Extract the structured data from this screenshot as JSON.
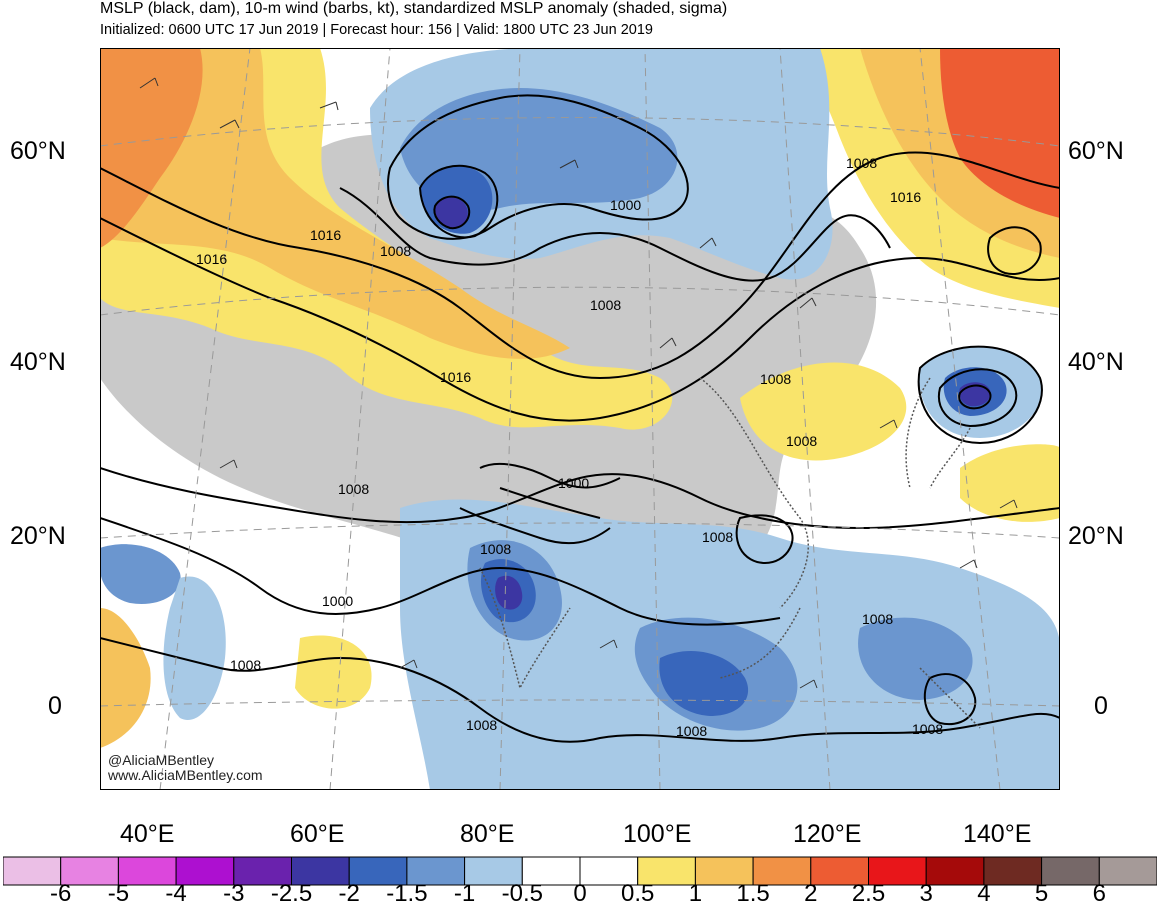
{
  "header": {
    "title": "MSLP (black, dam), 10-m wind (barbs, kt), standardized MSLP anomaly (shaded, sigma)",
    "subtitle": "Initialized: 0600 UTC 17 Jun 2019 | Forecast hour: 156 | Valid: 1800 UTC 23 Jun 2019"
  },
  "map": {
    "lat_labels": [
      "60°N",
      "40°N",
      "20°N",
      "0"
    ],
    "lon_labels": [
      "40°E",
      "60°E",
      "80°E",
      "100°E",
      "120°E",
      "140°E"
    ],
    "contour_labels": [
      "1016",
      "1016",
      "1008",
      "1000",
      "1008",
      "1008",
      "1016",
      "1016",
      "1008",
      "1008",
      "1008",
      "1000",
      "1008",
      "1000",
      "1008",
      "1008",
      "1008",
      "1008",
      "1008",
      "1008"
    ],
    "credit_line1": "@AliciaMBentley",
    "credit_line2": "www.AliciaMBentley.com"
  },
  "colorbar": {
    "colors": [
      "#ebbfe6",
      "#e782e2",
      "#dc47dc",
      "#ad10d0",
      "#6a22ad",
      "#3c36a2",
      "#3866bb",
      "#6b96cf",
      "#a7c9e6",
      "#ffffff",
      "#ffffff",
      "#f9e46b",
      "#f5c25b",
      "#f19145",
      "#ed5c33",
      "#e8161a",
      "#a50a0a",
      "#6e2a22",
      "#766868",
      "#a59a98"
    ],
    "labels": [
      "-6",
      "-5",
      "-4",
      "-3",
      "-2.5",
      "-2",
      "-1.5",
      "-1",
      "-0.5",
      "0",
      "0.5",
      "1",
      "1.5",
      "2",
      "2.5",
      "3",
      "4",
      "5",
      "6"
    ]
  }
}
